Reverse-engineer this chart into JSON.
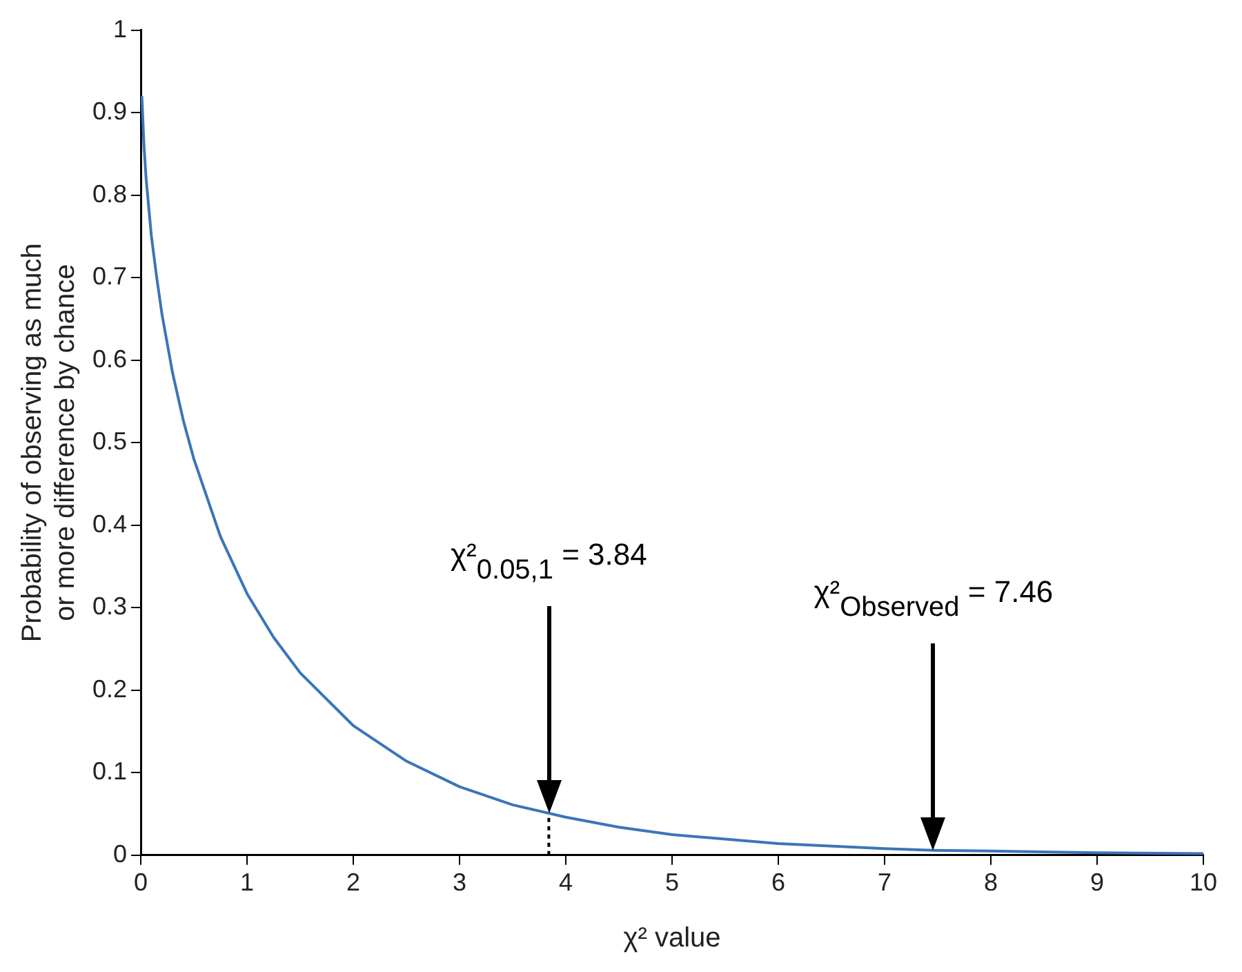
{
  "chart_data": {
    "type": "line",
    "xlabel": "χ² value",
    "ylabel": "Probability of observing as much or more difference by chance",
    "xlim": [
      0,
      10
    ],
    "xticks": [
      0,
      1,
      2,
      3,
      4,
      5,
      6,
      7,
      8,
      9,
      10
    ],
    "ylim": [
      0,
      1
    ],
    "yticks": [
      0,
      0.1,
      0.2,
      0.3,
      0.4,
      0.5,
      0.6,
      0.7,
      0.8,
      0.9,
      1
    ],
    "grid": false,
    "legend": false,
    "marker": "none",
    "series": [
      {
        "type": "line",
        "color": "#3a75b8",
        "line_style": "solid",
        "x": [
          0.01,
          0.03,
          0.05,
          0.1,
          0.15,
          0.2,
          0.3,
          0.4,
          0.5,
          0.75,
          1,
          1.25,
          1.5,
          2,
          2.5,
          3,
          3.5,
          4,
          4.5,
          5,
          6,
          7,
          7.46,
          8,
          9,
          10
        ],
        "values": [
          0.92,
          0.86,
          0.82,
          0.75,
          0.7,
          0.655,
          0.584,
          0.527,
          0.48,
          0.386,
          0.317,
          0.264,
          0.221,
          0.157,
          0.114,
          0.083,
          0.061,
          0.046,
          0.034,
          0.025,
          0.014,
          0.008,
          0.006,
          0.005,
          0.003,
          0.002
        ]
      },
      {
        "type": "line",
        "color": "#000000",
        "line_style": "dotted",
        "x": [
          3.84,
          3.84
        ],
        "values": [
          0,
          0.05
        ]
      }
    ],
    "annotations": [
      {
        "text": "χ²$_{0.05,1}$ = 3.84",
        "x": 3.84
      },
      {
        "text": "χ²$_{Observed}$ = 7.46",
        "x": 7.46
      }
    ]
  }
}
